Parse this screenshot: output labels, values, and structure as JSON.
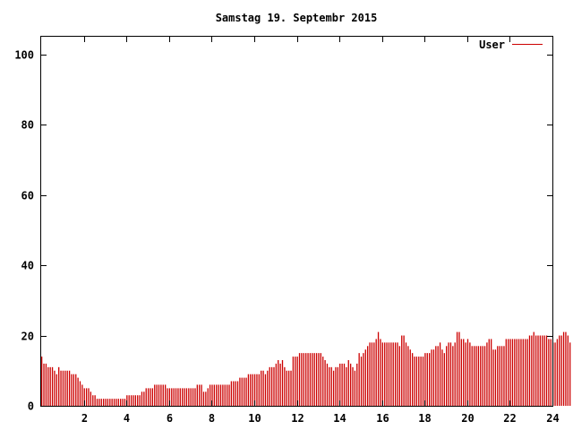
{
  "chart_data": {
    "type": "bar",
    "title": "Samstag 19. Septembr 2015",
    "xlabel": "",
    "ylabel": "",
    "xlim": [
      0,
      24
    ],
    "ylim": [
      0,
      105
    ],
    "x_ticks": [
      2,
      4,
      6,
      8,
      10,
      12,
      14,
      16,
      18,
      20,
      22,
      24
    ],
    "y_ticks": [
      0,
      20,
      40,
      60,
      80,
      100
    ],
    "legend_position": "top-right",
    "grid": false,
    "colors": {
      "series": "#cc0000",
      "axis": "#000000",
      "background": "#ffffff"
    },
    "series": [
      {
        "name": "User",
        "bin_hours": 0.1,
        "values": [
          14,
          12,
          12,
          11,
          11,
          11,
          10,
          9,
          11,
          10,
          10,
          10,
          10,
          10,
          9,
          9,
          9,
          8,
          7,
          6,
          5,
          5,
          5,
          4,
          3,
          3,
          2,
          2,
          2,
          2,
          2,
          2,
          2,
          2,
          2,
          2,
          2,
          2,
          2,
          2,
          3,
          3,
          3,
          3,
          3,
          3,
          3,
          4,
          4,
          5,
          5,
          5,
          5,
          6,
          6,
          6,
          6,
          6,
          6,
          5,
          5,
          5,
          5,
          5,
          5,
          5,
          5,
          5,
          5,
          5,
          5,
          5,
          5,
          6,
          6,
          6,
          4,
          4,
          5,
          6,
          6,
          6,
          6,
          6,
          6,
          6,
          6,
          6,
          6,
          7,
          7,
          7,
          7,
          8,
          8,
          8,
          8,
          9,
          9,
          9,
          9,
          9,
          9,
          10,
          10,
          9,
          10,
          11,
          11,
          11,
          12,
          13,
          12,
          13,
          11,
          10,
          10,
          10,
          14,
          14,
          14,
          15,
          15,
          15,
          15,
          15,
          15,
          15,
          15,
          15,
          15,
          15,
          14,
          13,
          12,
          11,
          11,
          10,
          11,
          11,
          12,
          12,
          12,
          11,
          13,
          12,
          11,
          10,
          12,
          15,
          14,
          15,
          16,
          17,
          18,
          18,
          18,
          19,
          21,
          19,
          18,
          18,
          18,
          18,
          18,
          18,
          18,
          18,
          17,
          20,
          20,
          18,
          17,
          16,
          15,
          14,
          14,
          14,
          14,
          14,
          15,
          15,
          15,
          16,
          16,
          17,
          17,
          18,
          16,
          15,
          17,
          18,
          18,
          17,
          18,
          21,
          21,
          19,
          19,
          18,
          19,
          18,
          17,
          17,
          17,
          17,
          17,
          17,
          17,
          18,
          19,
          19,
          16,
          16,
          17,
          17,
          17,
          17,
          19,
          19,
          19,
          19,
          19,
          19,
          19,
          19,
          19,
          19,
          19,
          20,
          20,
          21,
          20,
          20,
          20,
          20,
          20,
          20,
          19,
          19,
          18,
          18,
          19,
          20,
          20,
          21,
          21,
          20,
          18
        ]
      }
    ]
  }
}
